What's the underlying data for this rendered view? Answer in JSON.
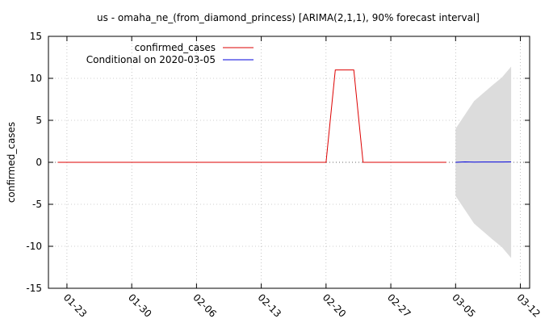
{
  "chart_data": {
    "type": "line",
    "title": "us - omaha_ne_(from_diamond_princess) [ARIMA(2,1,1), 90% forecast interval]",
    "ylabel": "confirmed_cases",
    "xlabel": "",
    "ylim": [
      -15,
      15
    ],
    "y_ticks": [
      -15,
      -10,
      -5,
      0,
      5,
      10,
      15
    ],
    "x_range": [
      "2020-01-21",
      "2020-03-13"
    ],
    "x_ticks": [
      {
        "date": "2020-01-23",
        "label": "01-23"
      },
      {
        "date": "2020-01-30",
        "label": "01-30"
      },
      {
        "date": "2020-02-06",
        "label": "02-06"
      },
      {
        "date": "2020-02-13",
        "label": "02-13"
      },
      {
        "date": "2020-02-20",
        "label": "02-20"
      },
      {
        "date": "2020-02-27",
        "label": "02-27"
      },
      {
        "date": "2020-03-05",
        "label": "03-05"
      },
      {
        "date": "2020-03-12",
        "label": "03-12"
      }
    ],
    "grid": true,
    "legend_position": "top-left",
    "series": [
      {
        "name": "confirmed_cases",
        "color": "#dd0000",
        "points": [
          [
            "2020-01-22",
            0
          ],
          [
            "2020-02-20",
            0
          ],
          [
            "2020-02-21",
            11
          ],
          [
            "2020-02-23",
            11
          ],
          [
            "2020-02-24",
            0
          ],
          [
            "2020-03-04",
            0
          ]
        ]
      },
      {
        "name": "Conditional on 2020-03-05",
        "color": "#0000dd",
        "points": [
          [
            "2020-03-05",
            0.0
          ],
          [
            "2020-03-06",
            0.05
          ],
          [
            "2020-03-07",
            0.03
          ],
          [
            "2020-03-08",
            0.04
          ],
          [
            "2020-03-09",
            0.04
          ],
          [
            "2020-03-10",
            0.04
          ],
          [
            "2020-03-11",
            0.05
          ]
        ]
      }
    ],
    "interval": {
      "color": "#dcdcdc",
      "upper": [
        [
          "2020-03-05",
          4.0
        ],
        [
          "2020-03-07",
          7.3
        ],
        [
          "2020-03-09",
          9.2
        ],
        [
          "2020-03-10",
          10.1
        ],
        [
          "2020-03-11",
          11.4
        ]
      ],
      "lower": [
        [
          "2020-03-05",
          -4.0
        ],
        [
          "2020-03-07",
          -7.3
        ],
        [
          "2020-03-09",
          -9.2
        ],
        [
          "2020-03-10",
          -10.1
        ],
        [
          "2020-03-11",
          -11.4
        ]
      ]
    }
  }
}
